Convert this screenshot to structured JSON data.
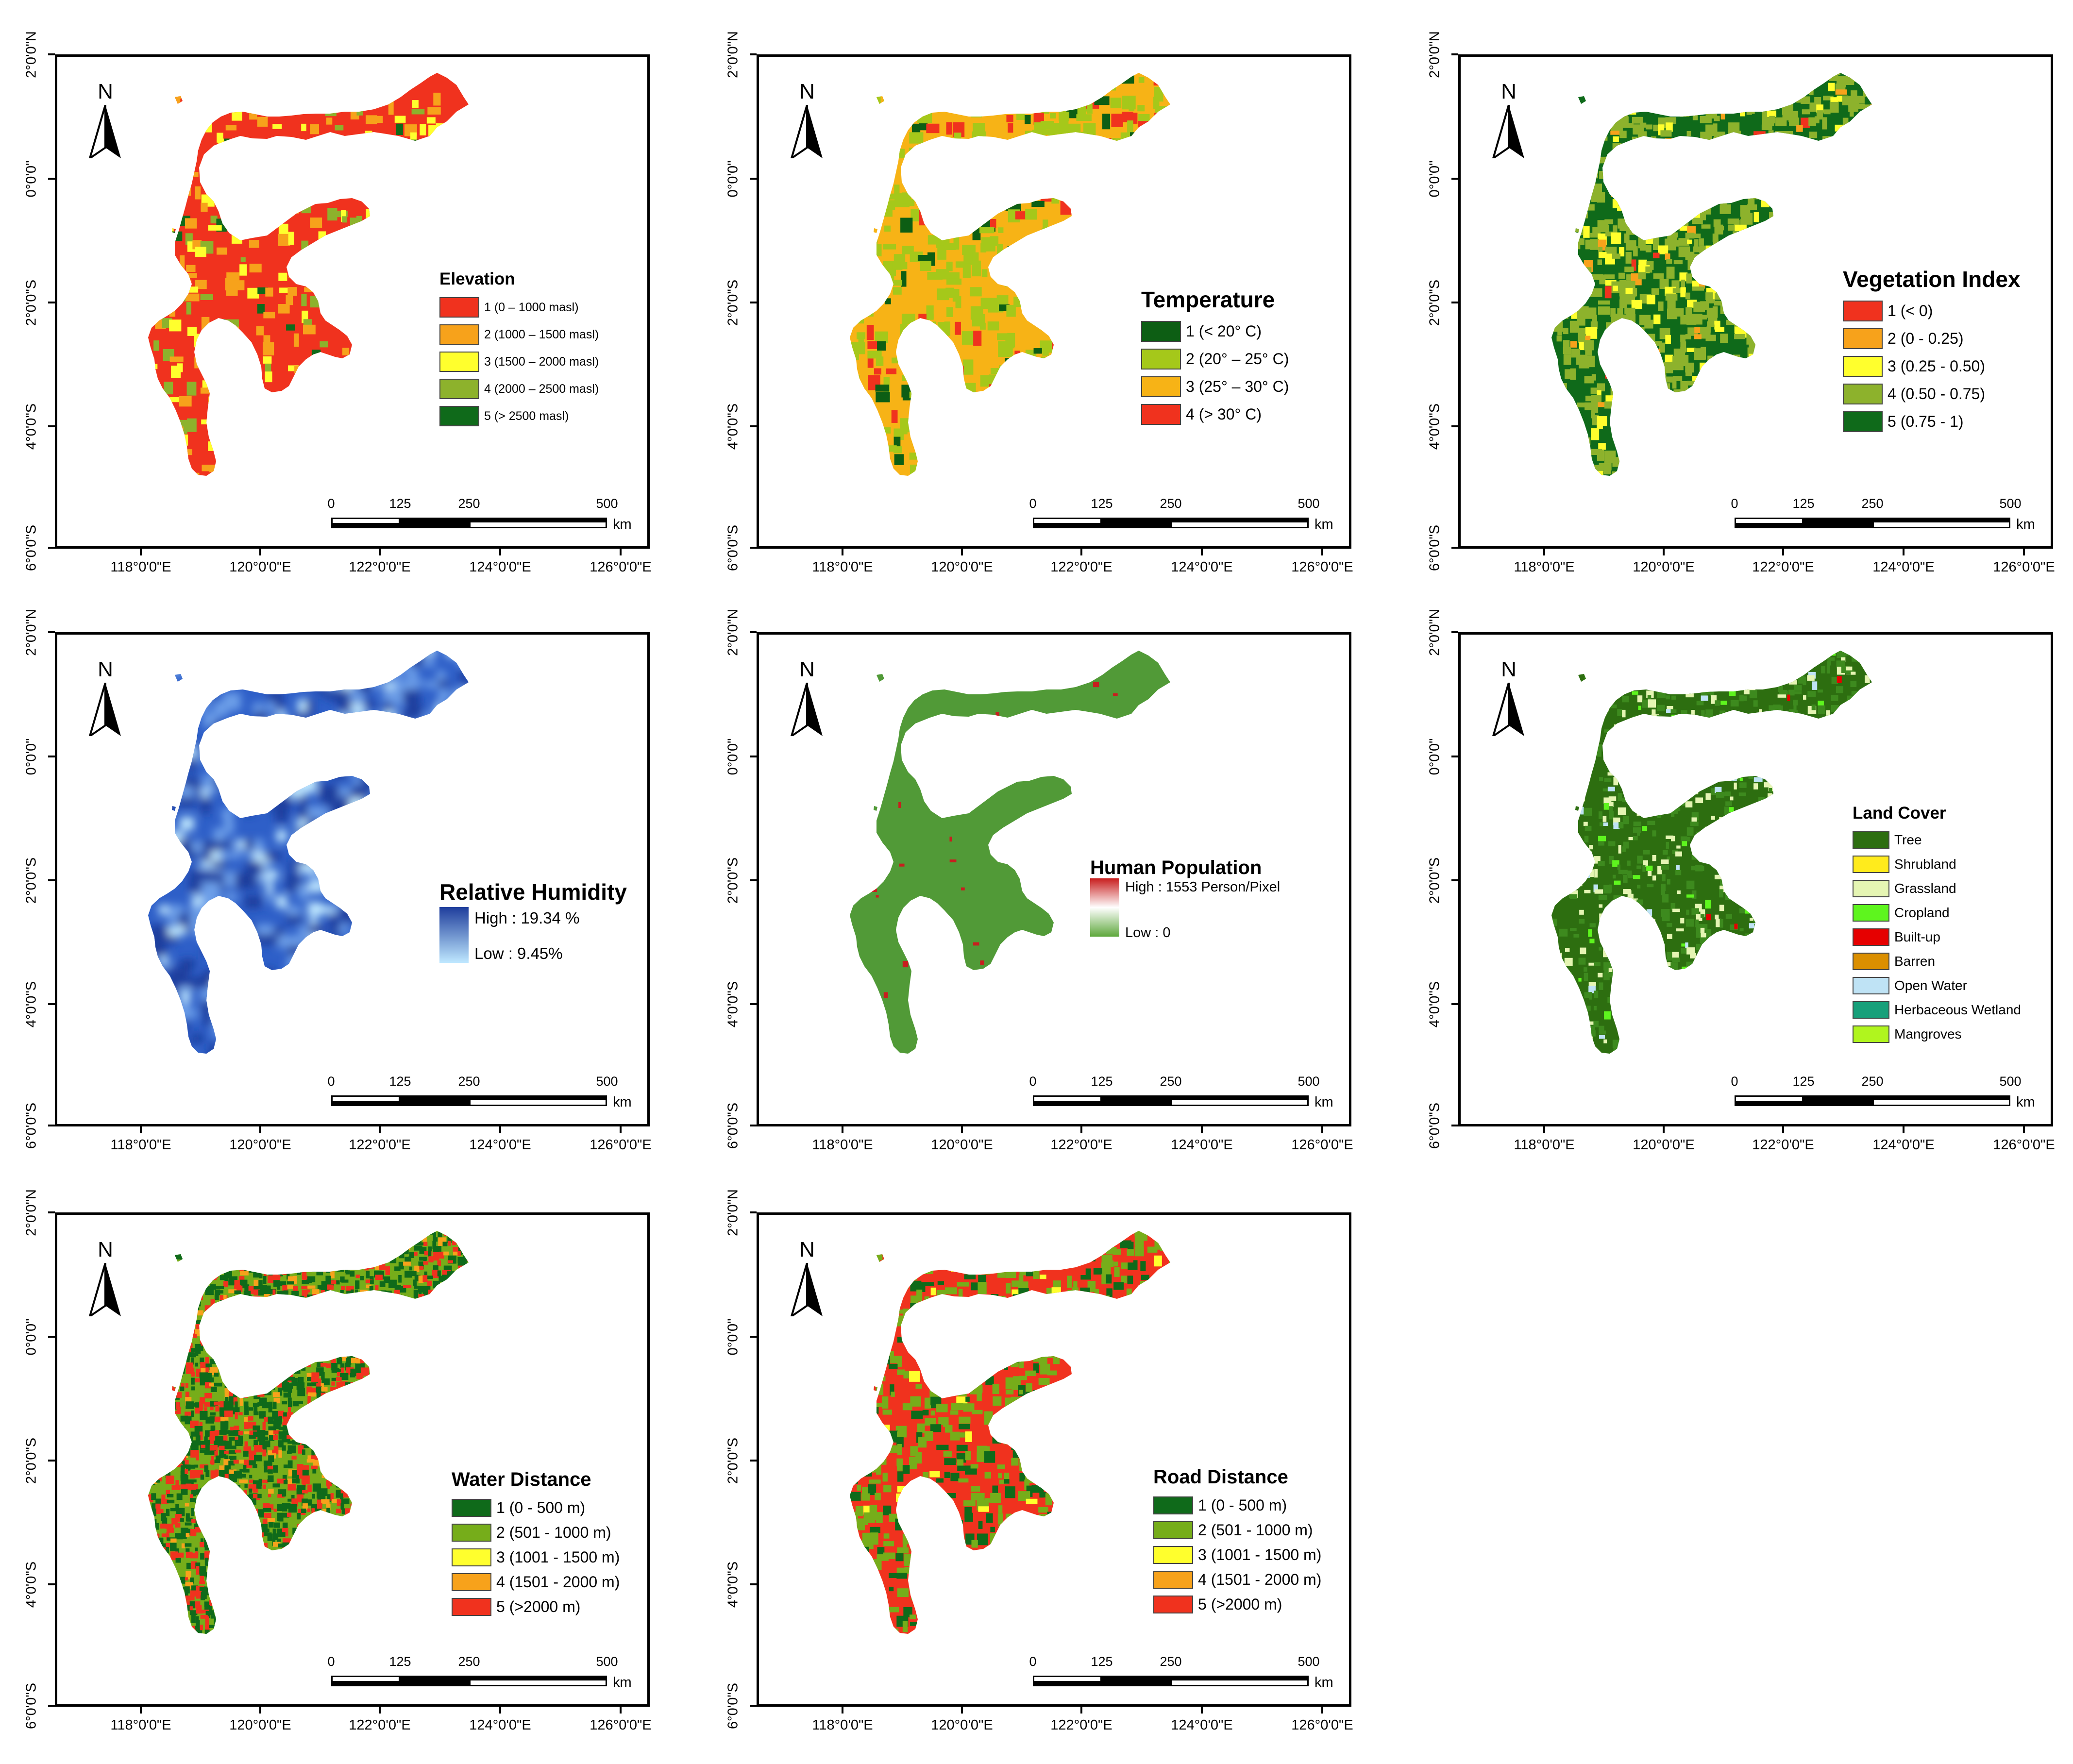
{
  "colors": {
    "elevation": [
      "#f0321e",
      "#f7a21b",
      "#ffff2d",
      "#8db22c",
      "#0f6a1a"
    ],
    "temperature": [
      "#0d5e14",
      "#a5c81a",
      "#f7b316",
      "#f0321e"
    ],
    "vegetation": [
      "#f0321e",
      "#f7a21b",
      "#ffff2d",
      "#8db22c",
      "#0f6a1a"
    ],
    "distance": [
      "#0f6a1a",
      "#76ad1a",
      "#ffff2d",
      "#f7a21b",
      "#f0321e"
    ],
    "landcover": [
      "#2d6e10",
      "#ffeb1c",
      "#e5f5b3",
      "#5ef51e",
      "#e60000",
      "#db8f00",
      "#bfe3f5",
      "#17a07a",
      "#b0f51e"
    ],
    "humidity_high": "#1e3d9c",
    "humidity_low": "#bfe8ff",
    "population_high": "#c81e1e",
    "population_low": "#5ea83c",
    "population_fill": "#519a37",
    "humidity_fill": "#2e5fc8"
  },
  "axes": {
    "lat_labels": [
      "2°0'0\"N",
      "0°0'0\"",
      "2°0'0\"S",
      "4°0'0\"S",
      "6°0'0\"S"
    ],
    "lon_labels": [
      "118°0'0\"E",
      "120°0'0\"E",
      "122°0'0\"E",
      "124°0'0\"E",
      "126°0'0\"E"
    ]
  },
  "north_label": "N",
  "scale": {
    "labels": [
      "0",
      "125",
      "250",
      "500"
    ],
    "unit": "km"
  },
  "panels": [
    {
      "id": "elevation",
      "title": "Elevation",
      "legend_type": "classes",
      "items": [
        "1 (0 – 1000 masl)",
        "2 (1000 – 1500 masl)",
        "3 (1500 – 2000 masl)",
        "4 (2000 – 2500 masl)",
        "5 (> 2500 masl)"
      ]
    },
    {
      "id": "temperature",
      "title": "Temperature",
      "legend_type": "classes",
      "items": [
        "1 (< 20° C)",
        "2 (20° – 25° C)",
        "3 (25° – 30° C)",
        "4 (> 30° C)"
      ]
    },
    {
      "id": "vegetation",
      "title": "Vegetation Index",
      "legend_type": "classes",
      "items": [
        "1 (< 0)",
        "2 (0 - 0.25)",
        "3 (0.25 - 0.50)",
        "4 (0.50 - 0.75)",
        "5 (0.75 - 1)"
      ]
    },
    {
      "id": "humidity",
      "title": "Relative Humidity",
      "legend_type": "gradient",
      "high": "High : 19.34 %",
      "low": "Low : 9.45%"
    },
    {
      "id": "population",
      "title": "Human Population",
      "legend_type": "gradient",
      "high": "High : 1553 Person/Pixel",
      "low": "Low : 0"
    },
    {
      "id": "landcover",
      "title": "Land Cover",
      "legend_type": "classes",
      "items": [
        "Tree",
        "Shrubland",
        "Grassland",
        "Cropland",
        "Built-up",
        "Barren",
        "Open Water",
        "Herbaceous Wetland",
        "Mangroves"
      ]
    },
    {
      "id": "water",
      "title": "Water Distance",
      "legend_type": "classes",
      "items": [
        "1 (0 - 500 m)",
        "2 (501 - 1000  m)",
        "3 (1001 - 1500 m)",
        "4 (1501 - 2000 m)",
        "5 (>2000 m)"
      ]
    },
    {
      "id": "road",
      "title": "Road Distance",
      "legend_type": "classes",
      "items": [
        "1 (0 - 500 m)",
        "2 (501 - 1000 m)",
        "3 (1001 - 1500 m)",
        "4 (1501 - 2000 m)",
        "5 (>2000 m)"
      ]
    }
  ]
}
